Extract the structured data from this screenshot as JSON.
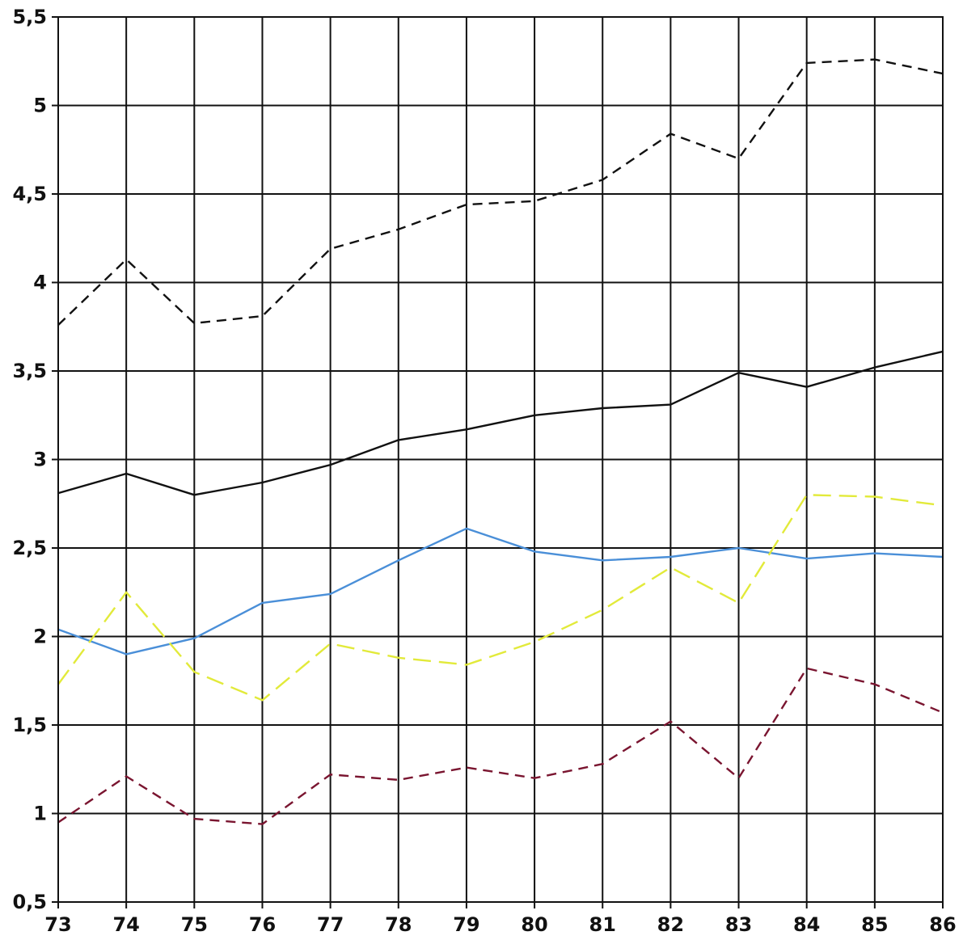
{
  "chart_data": {
    "type": "line",
    "title": "",
    "xlabel": "",
    "ylabel": "",
    "x": [
      "73",
      "74",
      "75",
      "76",
      "77",
      "78",
      "79",
      "80",
      "81",
      "82",
      "83",
      "84",
      "85",
      "86"
    ],
    "ylim": [
      0.5,
      5.5
    ],
    "yticks": [
      "0,5",
      "1",
      "1,5",
      "2",
      "2,5",
      "3",
      "3,5",
      "4",
      "4,5",
      "5",
      "5,5"
    ],
    "ytick_values": [
      0.5,
      1,
      1.5,
      2,
      2.5,
      3,
      3.5,
      4,
      4.5,
      5,
      5.5
    ],
    "grid": true,
    "legend": "none",
    "series": [
      {
        "values": [
          3.76,
          4.13,
          3.77,
          3.81,
          4.19,
          4.3,
          4.44,
          4.46,
          4.58,
          4.84,
          4.7,
          5.24,
          5.26,
          5.18
        ],
        "color": "#111111",
        "dash": "dashed"
      },
      {
        "values": [
          2.81,
          2.92,
          2.8,
          2.87,
          2.97,
          3.11,
          3.17,
          3.25,
          3.29,
          3.31,
          3.49,
          3.41,
          3.52,
          3.61
        ],
        "color": "#111111",
        "dash": "solid"
      },
      {
        "values": [
          2.04,
          1.9,
          1.99,
          2.19,
          2.24,
          2.43,
          2.61,
          2.48,
          2.43,
          2.45,
          2.5,
          2.44,
          2.47,
          2.45
        ],
        "color": "#4a8fd8",
        "dash": "solid"
      },
      {
        "values": [
          1.73,
          2.25,
          1.8,
          1.64,
          1.96,
          1.88,
          1.84,
          1.97,
          2.15,
          2.39,
          2.19,
          2.8,
          2.79,
          2.74
        ],
        "color": "#e2ea3a",
        "dash": "long-dash"
      },
      {
        "values": [
          0.95,
          1.21,
          0.97,
          0.94,
          1.22,
          1.19,
          1.26,
          1.2,
          1.28,
          1.52,
          1.2,
          1.82,
          1.73,
          1.57
        ],
        "color": "#7a1530",
        "dash": "dashed"
      }
    ]
  }
}
